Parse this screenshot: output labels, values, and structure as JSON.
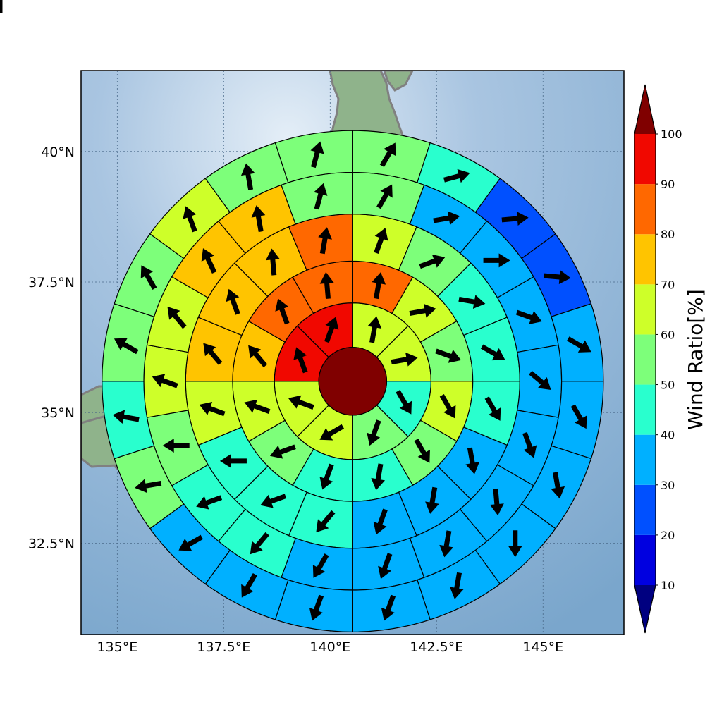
{
  "map": {
    "lon_ticks": [
      {
        "lon": 135.0,
        "label": "135°E"
      },
      {
        "lon": 137.5,
        "label": "137.5°E"
      },
      {
        "lon": 140.0,
        "label": "140°E"
      },
      {
        "lon": 142.5,
        "label": "142.5°E"
      },
      {
        "lon": 145.0,
        "label": "145°E"
      }
    ],
    "lat_ticks": [
      {
        "lat": 40.0,
        "label": "40°N"
      },
      {
        "lat": 37.5,
        "label": "37.5°N"
      },
      {
        "lat": 35.0,
        "label": "35°N"
      },
      {
        "lat": 32.5,
        "label": "32.5°N"
      }
    ],
    "lon_range": [
      134.15,
      146.9
    ],
    "lat_range": [
      30.75,
      41.55
    ],
    "center": {
      "lon": 140.53,
      "lat": 35.6
    },
    "ring_radii_deg": [
      0.65,
      1.5,
      2.3,
      3.2,
      4.0,
      4.8
    ],
    "coastline_color": "#808080",
    "ocean_color": "#86acd0",
    "land_color": "#8fb38b"
  },
  "colorbar": {
    "title": "Wind Ratio[%]",
    "ticks": [
      "10",
      "20",
      "30",
      "40",
      "50",
      "60",
      "70",
      "80",
      "90",
      "100"
    ],
    "under_color": "#000080",
    "over_color": "#800000",
    "colors": [
      "#0000e0",
      "#0050ff",
      "#00b0ff",
      "#29ffce",
      "#7dff7a",
      "#ceff29",
      "#ffc400",
      "#ff6800",
      "#f10800"
    ]
  },
  "chart_data": {
    "type": "heatmap",
    "center_value": 100,
    "rings": [
      {
        "values": [
          65,
          60,
          45,
          55,
          60,
          65,
          95,
          95
        ]
      },
      {
        "values": [
          80,
          65,
          55,
          60,
          50,
          40,
          45,
          55,
          65,
          75,
          85,
          85
        ]
      },
      {
        "values": [
          60,
          50,
          40,
          40,
          40,
          30,
          30,
          30,
          40,
          40,
          45,
          65,
          75,
          75,
          75,
          80
        ]
      },
      {
        "values": [
          50,
          35,
          35,
          30,
          30,
          30,
          30,
          30,
          30,
          30,
          40,
          40,
          55,
          65,
          65,
          70,
          70,
          55
        ]
      },
      {
        "values": [
          50,
          40,
          25,
          25,
          30,
          30,
          30,
          30,
          30,
          30,
          30,
          30,
          30,
          55,
          45,
          55,
          55,
          65,
          55,
          50
        ]
      },
      {
        "values": [
          45,
          40,
          20,
          20,
          20,
          20,
          20,
          30,
          30,
          30,
          30,
          20,
          30,
          30,
          40,
          45,
          40,
          55,
          45,
          45,
          55,
          55
        ]
      }
    ],
    "arrow_dirs_deg": [
      [
        10,
        80,
        150,
        200,
        240,
        290,
        340,
        20
      ],
      [
        10,
        80,
        110,
        150,
        150,
        190,
        200,
        250,
        290,
        320,
        340,
        355
      ],
      [
        20,
        70,
        100,
        120,
        150,
        170,
        190,
        200,
        220,
        250,
        270,
        290,
        320,
        340,
        355,
        10
      ],
      [
        30,
        80,
        90,
        110,
        130,
        160,
        175,
        190,
        200,
        210,
        220,
        250,
        270,
        290,
        320,
        335,
        350,
        15
      ],
      [
        30,
        75,
        85,
        95,
        120,
        150,
        170,
        180,
        190,
        200,
        200,
        210,
        240,
        260,
        280,
        300,
        330,
        340,
        350,
        15
      ],
      [
        30,
        80,
        90,
        95,
        110,
        145,
        165,
        180,
        190,
        200,
        210,
        240,
        260,
        260,
        300,
        320,
        340,
        355,
        355,
        10,
        35,
        60
      ]
    ]
  }
}
